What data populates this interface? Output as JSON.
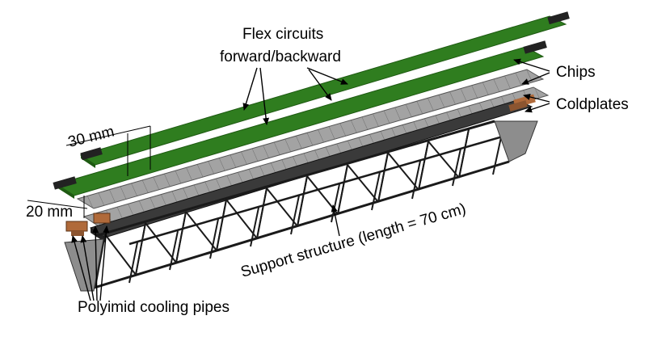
{
  "labels": {
    "flex_line1": "Flex circuits",
    "flex_line2": "forward/backward",
    "chips": "Chips",
    "coldplates": "Coldplates",
    "dim_30": "30 mm",
    "dim_20": "20 mm",
    "support": "Support structure (length = 70 cm)",
    "pipes": "Polyimid cooling pipes"
  },
  "colors": {
    "flex_green": "#2f7d1f",
    "flex_green_dark": "#1e5a12",
    "chip_grey": "#9a9a9a",
    "chip_grey_light": "#b8b8b8",
    "coldplate_dark": "#3a3a3a",
    "frame": "#1a1a1a",
    "copper": "#b06a3a"
  }
}
